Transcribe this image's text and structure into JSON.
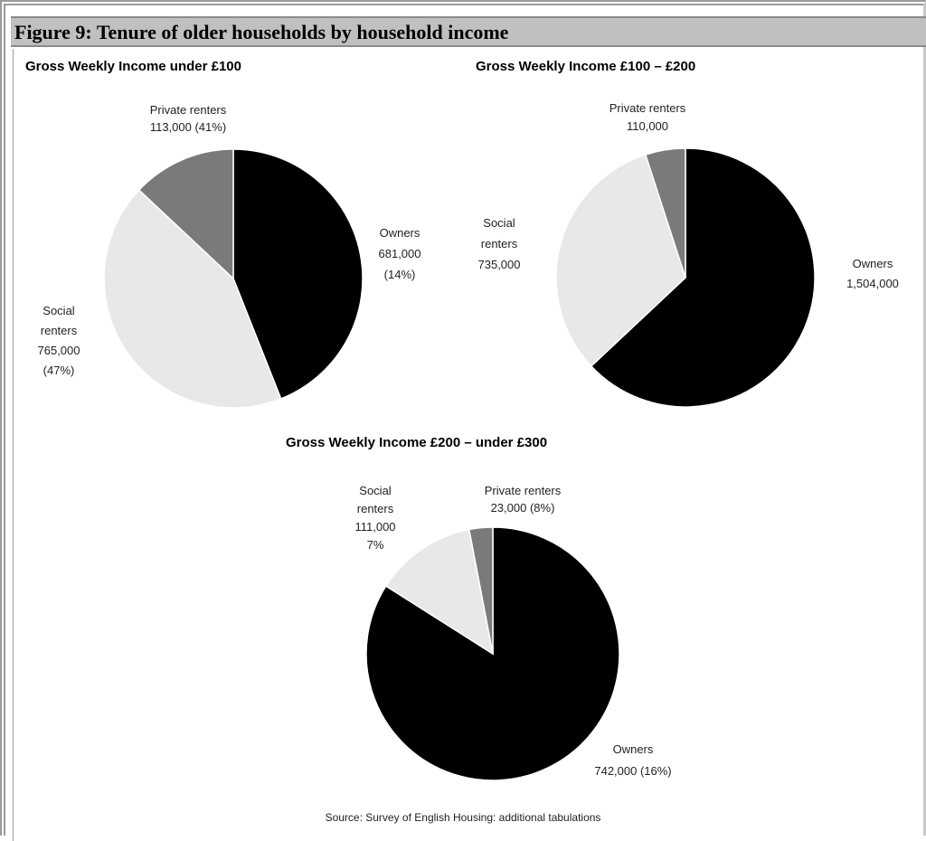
{
  "figure_title": "Figure 9: Tenure of older households by household income",
  "source": "Source: Survey of English Housing: additional tabulations",
  "colors": {
    "owners": "#000000",
    "social": "#e8e8e8",
    "private": "#7a7a7a",
    "header_bg": "#c0c0c0"
  },
  "chart_data": [
    {
      "type": "pie",
      "title": "Gross Weekly Income under £100",
      "slices": [
        {
          "key": "owners",
          "value": 44,
          "label_lines": [
            "Owners",
            "681,000",
            "(14%)"
          ]
        },
        {
          "key": "social",
          "value": 43,
          "label_lines": [
            "Social",
            "renters",
            "765,000",
            "(47%)"
          ]
        },
        {
          "key": "private",
          "value": 13,
          "label_lines": [
            "Private renters",
            "113,000 (41%)"
          ]
        }
      ]
    },
    {
      "type": "pie",
      "title": "Gross Weekly Income £100 – £200",
      "slices": [
        {
          "key": "owners",
          "value": 63,
          "label_lines": [
            "Owners",
            "1,504,000"
          ]
        },
        {
          "key": "social",
          "value": 32,
          "label_lines": [
            "Social",
            "renters",
            "735,000"
          ]
        },
        {
          "key": "private",
          "value": 5,
          "label_lines": [
            "Private renters",
            "110,000"
          ]
        }
      ]
    },
    {
      "type": "pie",
      "title": "Gross Weekly Income £200 – under £300",
      "slices": [
        {
          "key": "owners",
          "value": 84,
          "label_lines": [
            "Owners",
            "742,000 (16%)"
          ]
        },
        {
          "key": "social",
          "value": 13,
          "label_lines": [
            "Social",
            "renters",
            "111,000",
            "7%"
          ]
        },
        {
          "key": "private",
          "value": 3,
          "label_lines": [
            "Private renters",
            "23,000 (8%)"
          ]
        }
      ]
    }
  ]
}
